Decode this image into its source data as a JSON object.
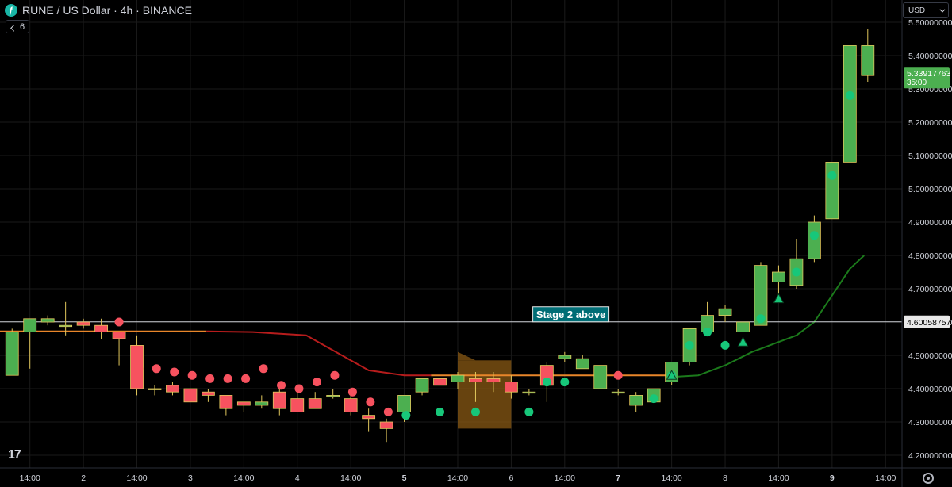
{
  "header": {
    "title": "RUNE / US Dollar · 4h · BINANCE",
    "logo_glyph": "ƒ",
    "indicator_count": "6",
    "currency": "USD"
  },
  "tv_logo": "17",
  "colors": {
    "bull": "#4caf50",
    "bull_border": "#e1c75c",
    "bear": "#f7525f",
    "bear_border": "#e1c75c",
    "dot_red": "#f7525f",
    "dot_green": "#17c77a",
    "red_line": "#b71c1c",
    "green_line": "#1b7a1b",
    "orange_line": "#e8862a",
    "box": "#8a5a14",
    "label_bg": "#006d75",
    "grid": "#1a1a1a",
    "axis_text": "#d1d4dc"
  },
  "chart_data": {
    "type": "candlestick",
    "title": "RUNE / US Dollar · 4h · BINANCE",
    "ylim": [
      4.15,
      5.5
    ],
    "y_ticks": [
      4.2,
      4.3,
      4.4,
      4.5,
      4.6,
      4.7,
      4.8,
      4.9,
      5.0,
      5.1,
      5.2,
      5.3,
      5.4,
      5.5
    ],
    "y_tick_labels": [
      "4.20000000",
      "4.30000000",
      "4.40000000",
      "4.50000000",
      "4.60000000",
      "4.70000000",
      "4.80000000",
      "4.90000000",
      "5.00000000",
      "5.10000000",
      "5.20000000",
      "5.30000000",
      "5.40000000",
      "5.50000000"
    ],
    "x_ticks": [
      {
        "i": 1.5,
        "label": "14:00"
      },
      {
        "i": 4.5,
        "label": "2"
      },
      {
        "i": 7.5,
        "label": "14:00"
      },
      {
        "i": 10.5,
        "label": "3"
      },
      {
        "i": 13.5,
        "label": "14:00"
      },
      {
        "i": 16.5,
        "label": "4"
      },
      {
        "i": 19.5,
        "label": "14:00"
      },
      {
        "i": 22.5,
        "label": "5"
      },
      {
        "i": 25.5,
        "label": "14:00"
      },
      {
        "i": 28.5,
        "label": "6"
      },
      {
        "i": 31.5,
        "label": "14:00"
      },
      {
        "i": 34.5,
        "label": "7"
      },
      {
        "i": 37.5,
        "label": "14:00"
      },
      {
        "i": 40.5,
        "label": "8"
      },
      {
        "i": 43.5,
        "label": "14:00"
      },
      {
        "i": 46.5,
        "label": "9"
      },
      {
        "i": 49.5,
        "label": "14:00"
      }
    ],
    "bold_x_labels": [
      "5",
      "7",
      "9"
    ],
    "candles": [
      {
        "o": 4.44,
        "h": 4.58,
        "l": 4.44,
        "c": 4.57
      },
      {
        "o": 4.57,
        "h": 4.61,
        "l": 4.46,
        "c": 4.61
      },
      {
        "o": 4.6,
        "h": 4.62,
        "l": 4.59,
        "c": 4.61
      },
      {
        "o": 4.59,
        "h": 4.66,
        "l": 4.56,
        "c": 4.59
      },
      {
        "o": 4.6,
        "h": 4.61,
        "l": 4.58,
        "c": 4.59
      },
      {
        "o": 4.59,
        "h": 4.61,
        "l": 4.55,
        "c": 4.57
      },
      {
        "o": 4.57,
        "h": 4.57,
        "l": 4.47,
        "c": 4.55
      },
      {
        "o": 4.53,
        "h": 4.56,
        "l": 4.38,
        "c": 4.4
      },
      {
        "o": 4.4,
        "h": 4.41,
        "l": 4.38,
        "c": 4.4
      },
      {
        "o": 4.41,
        "h": 4.42,
        "l": 4.38,
        "c": 4.39
      },
      {
        "o": 4.4,
        "h": 4.4,
        "l": 4.36,
        "c": 4.36
      },
      {
        "o": 4.39,
        "h": 4.4,
        "l": 4.36,
        "c": 4.38
      },
      {
        "o": 4.38,
        "h": 4.38,
        "l": 4.32,
        "c": 4.34
      },
      {
        "o": 4.36,
        "h": 4.36,
        "l": 4.33,
        "c": 4.35
      },
      {
        "o": 4.35,
        "h": 4.38,
        "l": 4.34,
        "c": 4.36
      },
      {
        "o": 4.39,
        "h": 4.41,
        "l": 4.32,
        "c": 4.34
      },
      {
        "o": 4.37,
        "h": 4.39,
        "l": 4.33,
        "c": 4.33
      },
      {
        "o": 4.37,
        "h": 4.39,
        "l": 4.34,
        "c": 4.34
      },
      {
        "o": 4.38,
        "h": 4.4,
        "l": 4.37,
        "c": 4.38
      },
      {
        "o": 4.37,
        "h": 4.4,
        "l": 4.32,
        "c": 4.33
      },
      {
        "o": 4.32,
        "h": 4.34,
        "l": 4.27,
        "c": 4.31
      },
      {
        "o": 4.3,
        "h": 4.31,
        "l": 4.24,
        "c": 4.28
      },
      {
        "o": 4.33,
        "h": 4.38,
        "l": 4.3,
        "c": 4.38
      },
      {
        "o": 4.39,
        "h": 4.43,
        "l": 4.38,
        "c": 4.43
      },
      {
        "o": 4.43,
        "h": 4.54,
        "l": 4.4,
        "c": 4.41
      },
      {
        "o": 4.42,
        "h": 4.45,
        "l": 4.4,
        "c": 4.44
      },
      {
        "o": 4.43,
        "h": 4.45,
        "l": 4.36,
        "c": 4.42
      },
      {
        "o": 4.43,
        "h": 4.45,
        "l": 4.39,
        "c": 4.42
      },
      {
        "o": 4.42,
        "h": 4.44,
        "l": 4.37,
        "c": 4.39
      },
      {
        "o": 4.39,
        "h": 4.4,
        "l": 4.38,
        "c": 4.39
      },
      {
        "o": 4.47,
        "h": 4.48,
        "l": 4.36,
        "c": 4.41
      },
      {
        "o": 4.49,
        "h": 4.51,
        "l": 4.48,
        "c": 4.5
      },
      {
        "o": 4.46,
        "h": 4.5,
        "l": 4.46,
        "c": 4.49
      },
      {
        "o": 4.4,
        "h": 4.47,
        "l": 4.4,
        "c": 4.47
      },
      {
        "o": 4.39,
        "h": 4.4,
        "l": 4.38,
        "c": 4.39
      },
      {
        "o": 4.35,
        "h": 4.39,
        "l": 4.33,
        "c": 4.38
      },
      {
        "o": 4.36,
        "h": 4.4,
        "l": 4.36,
        "c": 4.4
      },
      {
        "o": 4.42,
        "h": 4.48,
        "l": 4.41,
        "c": 4.48
      },
      {
        "o": 4.48,
        "h": 4.58,
        "l": 4.47,
        "c": 4.58
      },
      {
        "o": 4.57,
        "h": 4.66,
        "l": 4.56,
        "c": 4.62
      },
      {
        "o": 4.62,
        "h": 4.65,
        "l": 4.6,
        "c": 4.64
      },
      {
        "o": 4.57,
        "h": 4.61,
        "l": 4.55,
        "c": 4.6
      },
      {
        "o": 4.59,
        "h": 4.78,
        "l": 4.59,
        "c": 4.77
      },
      {
        "o": 4.72,
        "h": 4.77,
        "l": 4.66,
        "c": 4.75
      },
      {
        "o": 4.71,
        "h": 4.85,
        "l": 4.7,
        "c": 4.79
      },
      {
        "o": 4.79,
        "h": 4.92,
        "l": 4.78,
        "c": 4.9
      },
      {
        "o": 4.91,
        "h": 5.08,
        "l": 4.91,
        "c": 5.08
      },
      {
        "o": 5.08,
        "h": 5.43,
        "l": 5.08,
        "c": 5.43
      },
      {
        "o": 5.34,
        "h": 5.48,
        "l": 5.32,
        "c": 5.43
      }
    ],
    "dots_red": [
      {
        "i": 6.5,
        "y": 4.6
      },
      {
        "i": 7.6,
        "y": 4.46
      },
      {
        "i": 8.6,
        "y": 4.46
      },
      {
        "i": 9.6,
        "y": 4.45
      },
      {
        "i": 10.6,
        "y": 4.44
      },
      {
        "i": 11.6,
        "y": 4.43
      },
      {
        "i": 12.6,
        "y": 4.43
      },
      {
        "i": 13.6,
        "y": 4.43
      },
      {
        "i": 14.6,
        "y": 4.46
      },
      {
        "i": 15.6,
        "y": 4.41
      },
      {
        "i": 16.6,
        "y": 4.4
      },
      {
        "i": 17.6,
        "y": 4.42
      },
      {
        "i": 18.6,
        "y": 4.44
      },
      {
        "i": 19.6,
        "y": 4.39
      },
      {
        "i": 20.6,
        "y": 4.36
      },
      {
        "i": 21.6,
        "y": 4.33
      },
      {
        "i": 34.5,
        "y": 4.44
      }
    ],
    "dots_green": [
      {
        "i": 22.6,
        "y": 4.32
      },
      {
        "i": 24.5,
        "y": 4.33
      },
      {
        "i": 26.5,
        "y": 4.33
      },
      {
        "i": 29.5,
        "y": 4.33
      },
      {
        "i": 30.5,
        "y": 4.42
      },
      {
        "i": 31.5,
        "y": 4.42
      },
      {
        "i": 36.5,
        "y": 4.37
      },
      {
        "i": 37.5,
        "y": 4.44
      },
      {
        "i": 38.5,
        "y": 4.53
      },
      {
        "i": 39.5,
        "y": 4.57
      },
      {
        "i": 40.5,
        "y": 4.53
      },
      {
        "i": 42.5,
        "y": 4.61
      },
      {
        "i": 44.5,
        "y": 4.75
      },
      {
        "i": 45.5,
        "y": 4.86
      },
      {
        "i": 46.5,
        "y": 5.04
      },
      {
        "i": 47.5,
        "y": 5.28
      }
    ],
    "triangles_green": [
      {
        "i": 37.5,
        "y": 4.44
      },
      {
        "i": 41.5,
        "y": 4.54
      },
      {
        "i": 43.5,
        "y": 4.67
      }
    ],
    "orange_line": [
      [
        -0.2,
        4.572
      ],
      [
        11.4,
        4.572
      ]
    ],
    "red_curve": [
      [
        11.4,
        4.572
      ],
      [
        14,
        4.57
      ],
      [
        17,
        4.56
      ],
      [
        19,
        4.5
      ],
      [
        20.5,
        4.455
      ],
      [
        22.5,
        4.44
      ],
      [
        24,
        4.44
      ]
    ],
    "orange_flat": [
      [
        24,
        4.44
      ],
      [
        37.5,
        4.44
      ]
    ],
    "green_curve": [
      [
        37.5,
        4.435
      ],
      [
        39,
        4.44
      ],
      [
        40.5,
        4.47
      ],
      [
        42,
        4.51
      ],
      [
        43.5,
        4.54
      ],
      [
        44.5,
        4.56
      ],
      [
        45.5,
        4.6
      ],
      [
        46.5,
        4.68
      ],
      [
        47.5,
        4.76
      ],
      [
        48.3,
        4.8
      ]
    ],
    "box_zone": {
      "i0": 25.5,
      "i1": 28.5,
      "y0": 4.28,
      "y1": 4.485
    },
    "box_flag": {
      "i0": 25.5,
      "i1": 26.5,
      "y_top": 4.51,
      "y_bot": 4.485
    },
    "horizontal_line": {
      "y": 4.60058757,
      "label": "Stage 2 above"
    },
    "label_position": {
      "i": 29.8
    },
    "price_labels": [
      {
        "y": 4.60058757,
        "text": "4.60058757",
        "style": "white"
      },
      {
        "y": 5.34,
        "text": "5.33917763",
        "sub": "35:00",
        "style": "green"
      }
    ]
  }
}
